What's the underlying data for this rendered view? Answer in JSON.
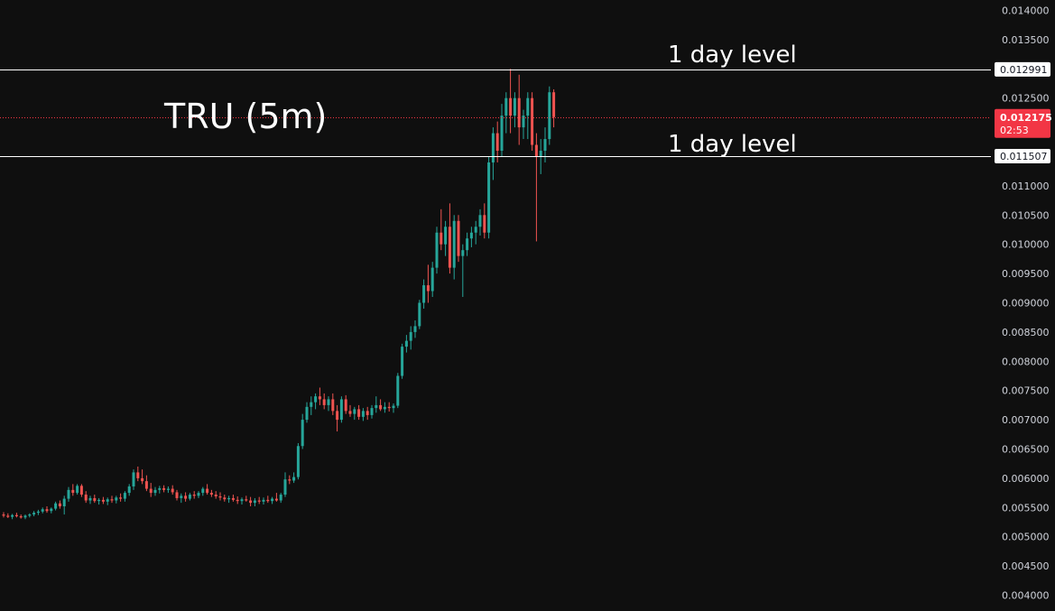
{
  "chart_data": {
    "type": "candlestick",
    "title": "TRU (5m)",
    "y_axis": {
      "ylim": [
        0.0039,
        0.0142
      ],
      "ticks": [
        "0.004000",
        "0.004500",
        "0.005000",
        "0.005500",
        "0.006000",
        "0.006500",
        "0.007000",
        "0.007500",
        "0.008000",
        "0.008500",
        "0.009000",
        "0.009500",
        "0.010000",
        "0.010500",
        "0.011000",
        "0.011500",
        "0.012000",
        "0.012500",
        "0.013000",
        "0.013500",
        "0.014000"
      ],
      "tick_values": [
        0.004,
        0.0045,
        0.005,
        0.0055,
        0.006,
        0.0065,
        0.007,
        0.0075,
        0.008,
        0.0085,
        0.009,
        0.0095,
        0.01,
        0.0105,
        0.011,
        0.0115,
        0.012,
        0.0125,
        0.013,
        0.0135,
        0.014
      ]
    },
    "levels": [
      {
        "value": 0.012991,
        "label": "0.012991",
        "annotation": "1 day level"
      },
      {
        "value": 0.011507,
        "label": "0.011507",
        "annotation": "1 day level"
      }
    ],
    "last_price": {
      "value": 0.012175,
      "label": "0.012175",
      "countdown": "02:53"
    },
    "colors": {
      "up": "#26a69a",
      "down": "#ef5350",
      "background": "#0f0f0f",
      "last_price": "#f23645",
      "level_line": "#ffffff"
    },
    "candles": [
      [
        0.00538,
        0.00542,
        0.00533,
        0.00536
      ],
      [
        0.00536,
        0.0054,
        0.00532,
        0.00534
      ],
      [
        0.00534,
        0.00539,
        0.0053,
        0.00537
      ],
      [
        0.00537,
        0.00541,
        0.00533,
        0.00535
      ],
      [
        0.00535,
        0.00538,
        0.00531,
        0.00533
      ],
      [
        0.00533,
        0.00538,
        0.0053,
        0.00536
      ],
      [
        0.00536,
        0.0054,
        0.00533,
        0.00538
      ],
      [
        0.00538,
        0.00544,
        0.00535,
        0.00541
      ],
      [
        0.00541,
        0.00546,
        0.00537,
        0.00543
      ],
      [
        0.00543,
        0.0055,
        0.0054,
        0.00547
      ],
      [
        0.00547,
        0.00552,
        0.00541,
        0.00544
      ],
      [
        0.00544,
        0.0055,
        0.0054,
        0.00548
      ],
      [
        0.00548,
        0.0056,
        0.00545,
        0.00557
      ],
      [
        0.00557,
        0.00562,
        0.00548,
        0.00552
      ],
      [
        0.00552,
        0.0057,
        0.00538,
        0.00565
      ],
      [
        0.00565,
        0.00585,
        0.0056,
        0.0058
      ],
      [
        0.0058,
        0.0059,
        0.0057,
        0.00575
      ],
      [
        0.00575,
        0.0059,
        0.00572,
        0.00587
      ],
      [
        0.00587,
        0.0059,
        0.00568,
        0.00572
      ],
      [
        0.00572,
        0.00578,
        0.00558,
        0.00562
      ],
      [
        0.00562,
        0.0057,
        0.00556,
        0.00566
      ],
      [
        0.00566,
        0.00572,
        0.00558,
        0.00561
      ],
      [
        0.00561,
        0.00566,
        0.00555,
        0.00563
      ],
      [
        0.00563,
        0.00568,
        0.00556,
        0.0056
      ],
      [
        0.0056,
        0.00567,
        0.00554,
        0.00564
      ],
      [
        0.00564,
        0.0057,
        0.00558,
        0.00562
      ],
      [
        0.00562,
        0.0057,
        0.00557,
        0.00567
      ],
      [
        0.00567,
        0.00574,
        0.0056,
        0.00565
      ],
      [
        0.00565,
        0.00578,
        0.0056,
        0.00575
      ],
      [
        0.00575,
        0.0059,
        0.0057,
        0.00586
      ],
      [
        0.00586,
        0.00615,
        0.0058,
        0.0061
      ],
      [
        0.0061,
        0.0062,
        0.00595,
        0.006
      ],
      [
        0.006,
        0.00615,
        0.0059,
        0.00595
      ],
      [
        0.00595,
        0.00605,
        0.00578,
        0.00582
      ],
      [
        0.00582,
        0.00592,
        0.00568,
        0.00575
      ],
      [
        0.00575,
        0.00585,
        0.0057,
        0.0058
      ],
      [
        0.0058,
        0.00587,
        0.00574,
        0.00583
      ],
      [
        0.00583,
        0.00588,
        0.00576,
        0.0058
      ],
      [
        0.0058,
        0.00586,
        0.00575,
        0.00582
      ],
      [
        0.00582,
        0.00588,
        0.00572,
        0.00576
      ],
      [
        0.00576,
        0.0058,
        0.00562,
        0.00566
      ],
      [
        0.00566,
        0.00574,
        0.00558,
        0.0057
      ],
      [
        0.0057,
        0.00576,
        0.0056,
        0.00565
      ],
      [
        0.00565,
        0.00575,
        0.00562,
        0.00572
      ],
      [
        0.00572,
        0.00578,
        0.00565,
        0.0057
      ],
      [
        0.0057,
        0.00578,
        0.00566,
        0.00575
      ],
      [
        0.00575,
        0.00585,
        0.0057,
        0.00582
      ],
      [
        0.00582,
        0.0059,
        0.00572,
        0.00575
      ],
      [
        0.00575,
        0.0058,
        0.00568,
        0.00572
      ],
      [
        0.00572,
        0.00578,
        0.00565,
        0.00569
      ],
      [
        0.00569,
        0.00576,
        0.00562,
        0.00567
      ],
      [
        0.00567,
        0.00572,
        0.0056,
        0.00564
      ],
      [
        0.00564,
        0.0057,
        0.00558,
        0.00566
      ],
      [
        0.00566,
        0.00572,
        0.0056,
        0.00563
      ],
      [
        0.00563,
        0.00569,
        0.00556,
        0.00561
      ],
      [
        0.00561,
        0.00567,
        0.00555,
        0.00564
      ],
      [
        0.00564,
        0.0057,
        0.0056,
        0.00562
      ],
      [
        0.00562,
        0.00568,
        0.00552,
        0.00558
      ],
      [
        0.00558,
        0.00566,
        0.00552,
        0.00562
      ],
      [
        0.00562,
        0.00568,
        0.00556,
        0.0056
      ],
      [
        0.0056,
        0.00567,
        0.00555,
        0.00563
      ],
      [
        0.00563,
        0.0057,
        0.00558,
        0.00561
      ],
      [
        0.00561,
        0.00568,
        0.00556,
        0.00565
      ],
      [
        0.00565,
        0.00575,
        0.0056,
        0.00562
      ],
      [
        0.00562,
        0.00575,
        0.00558,
        0.00572
      ],
      [
        0.00572,
        0.0061,
        0.00568,
        0.00598
      ],
      [
        0.00598,
        0.00605,
        0.0059,
        0.00596
      ],
      [
        0.00596,
        0.0061,
        0.00592,
        0.00602
      ],
      [
        0.00602,
        0.0066,
        0.00598,
        0.00655
      ],
      [
        0.00655,
        0.0071,
        0.0065,
        0.007
      ],
      [
        0.007,
        0.0073,
        0.00695,
        0.00722
      ],
      [
        0.00722,
        0.0074,
        0.00708,
        0.0073
      ],
      [
        0.0073,
        0.00745,
        0.00718,
        0.0074
      ],
      [
        0.0074,
        0.00755,
        0.00725,
        0.00735
      ],
      [
        0.00735,
        0.00745,
        0.00718,
        0.00725
      ],
      [
        0.00725,
        0.0074,
        0.00715,
        0.00735
      ],
      [
        0.00735,
        0.00745,
        0.00708,
        0.00715
      ],
      [
        0.00715,
        0.00725,
        0.0068,
        0.007
      ],
      [
        0.007,
        0.0074,
        0.00695,
        0.00735
      ],
      [
        0.00735,
        0.00742,
        0.0071,
        0.00715
      ],
      [
        0.00715,
        0.00725,
        0.00705,
        0.0071
      ],
      [
        0.0071,
        0.00722,
        0.007,
        0.00718
      ],
      [
        0.00718,
        0.00725,
        0.007,
        0.00705
      ],
      [
        0.00705,
        0.0072,
        0.00698,
        0.00715
      ],
      [
        0.00715,
        0.00722,
        0.007,
        0.00708
      ],
      [
        0.00708,
        0.00725,
        0.00702,
        0.0072
      ],
      [
        0.0072,
        0.0074,
        0.00712,
        0.00725
      ],
      [
        0.00725,
        0.00735,
        0.00715,
        0.00718
      ],
      [
        0.00718,
        0.0073,
        0.00712,
        0.00722
      ],
      [
        0.00722,
        0.0073,
        0.00714,
        0.0072
      ],
      [
        0.0072,
        0.00728,
        0.00712,
        0.00724
      ],
      [
        0.00724,
        0.0078,
        0.0072,
        0.00775
      ],
      [
        0.00775,
        0.0083,
        0.0077,
        0.00825
      ],
      [
        0.00825,
        0.00845,
        0.00815,
        0.00835
      ],
      [
        0.00835,
        0.0086,
        0.0082,
        0.0085
      ],
      [
        0.0085,
        0.0087,
        0.0084,
        0.0086
      ],
      [
        0.0086,
        0.00905,
        0.00855,
        0.009
      ],
      [
        0.009,
        0.0094,
        0.0089,
        0.0093
      ],
      [
        0.0093,
        0.00965,
        0.009,
        0.0092
      ],
      [
        0.0092,
        0.0097,
        0.0091,
        0.0096
      ],
      [
        0.0096,
        0.0103,
        0.0095,
        0.0102
      ],
      [
        0.0102,
        0.0106,
        0.0099,
        0.01
      ],
      [
        0.01,
        0.0104,
        0.0098,
        0.0103
      ],
      [
        0.0103,
        0.0107,
        0.0095,
        0.0096
      ],
      [
        0.0096,
        0.0105,
        0.0094,
        0.0104
      ],
      [
        0.0104,
        0.0105,
        0.0097,
        0.0098
      ],
      [
        0.0098,
        0.01,
        0.0091,
        0.0099
      ],
      [
        0.0099,
        0.0102,
        0.0098,
        0.0101
      ],
      [
        0.0101,
        0.0103,
        0.00995,
        0.0102
      ],
      [
        0.0102,
        0.0104,
        0.01,
        0.0103
      ],
      [
        0.0103,
        0.0106,
        0.01015,
        0.0105
      ],
      [
        0.0105,
        0.0107,
        0.0101,
        0.0102
      ],
      [
        0.0102,
        0.0115,
        0.0101,
        0.0114
      ],
      [
        0.0114,
        0.012,
        0.0111,
        0.0119
      ],
      [
        0.0119,
        0.0121,
        0.0114,
        0.0116
      ],
      [
        0.0116,
        0.0124,
        0.0115,
        0.0122
      ],
      [
        0.0122,
        0.0126,
        0.0119,
        0.0125
      ],
      [
        0.0125,
        0.013,
        0.0119,
        0.0122
      ],
      [
        0.0122,
        0.0126,
        0.012,
        0.0125
      ],
      [
        0.0125,
        0.0129,
        0.0117,
        0.012
      ],
      [
        0.012,
        0.0123,
        0.0118,
        0.0122
      ],
      [
        0.0122,
        0.0126,
        0.0118,
        0.0125
      ],
      [
        0.0125,
        0.0126,
        0.0116,
        0.0117
      ],
      [
        0.0117,
        0.0119,
        0.01005,
        0.0115
      ],
      [
        0.0115,
        0.0118,
        0.0112,
        0.0116
      ],
      [
        0.0116,
        0.012,
        0.0114,
        0.0118
      ],
      [
        0.0118,
        0.0127,
        0.0117,
        0.0126
      ],
      [
        0.0126,
        0.01265,
        0.012,
        0.012175
      ]
    ]
  }
}
